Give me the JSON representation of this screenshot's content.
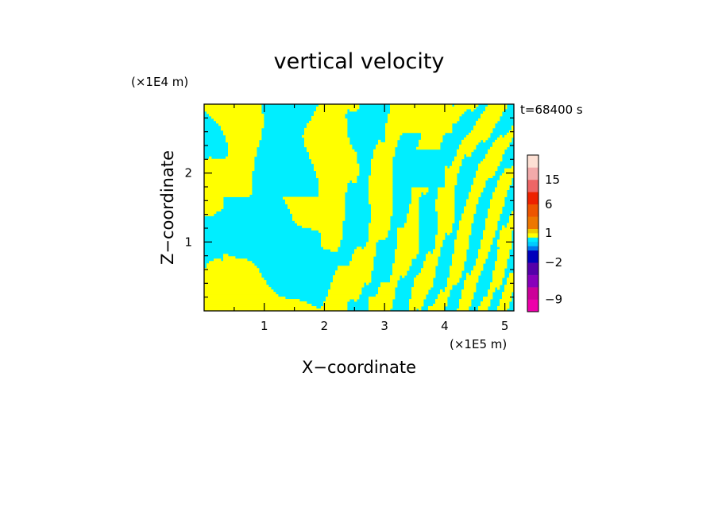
{
  "chart_data": {
    "type": "heatmap",
    "title": "vertical velocity",
    "time_label": "t=68400 s",
    "xlabel": "X−coordinate",
    "ylabel": "Z−coordinate",
    "x_units": "(×1E5 m)",
    "z_units": "(×1E4 m)",
    "xlim": [
      0,
      5.15
    ],
    "zlim": [
      0,
      3.0
    ],
    "x_ticks": [
      1,
      2,
      3,
      4,
      5
    ],
    "x_tick_labels": [
      "1",
      "2",
      "3",
      "4",
      "5"
    ],
    "z_ticks": [
      1,
      2
    ],
    "z_tick_labels": [
      "1",
      "2"
    ],
    "field_colors": {
      "positive": "#ffff00",
      "negative": "#00eeff"
    },
    "colorbar": {
      "levels": [
        "-12",
        "-9",
        "-6",
        "-4",
        "-2",
        "-1",
        "-0.5",
        "0",
        "0.5",
        "1",
        "2",
        "4",
        "6",
        "9",
        "15",
        "20"
      ],
      "colors": [
        "#ee00aa",
        "#cc0099",
        "#8800bb",
        "#5500aa",
        "#0000bb",
        "#0077ee",
        "#00ccff",
        "#00eeff",
        "#ffff00",
        "#eecc00",
        "#ee7700",
        "#ee5500",
        "#ee2200",
        "#ee6666",
        "#f2aaaa",
        "#fde0d4"
      ],
      "labels": [
        "15",
        "6",
        "1",
        "−2",
        "−9"
      ],
      "label_level_values": [
        15,
        6,
        1,
        -2,
        -9
      ]
    }
  }
}
